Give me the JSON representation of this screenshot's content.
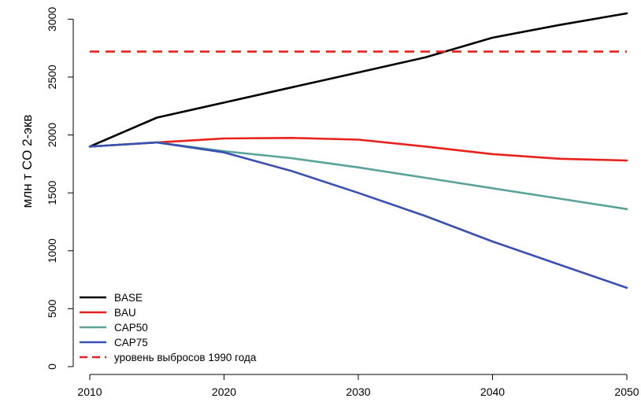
{
  "chart_data": {
    "type": "line",
    "title": "",
    "xlabel": "",
    "ylabel": "млн т CO 2-экв",
    "xlim": [
      2010,
      2050
    ],
    "ylim": [
      0,
      3050
    ],
    "x_ticks": [
      2010,
      2020,
      2030,
      2040,
      2050
    ],
    "y_ticks": [
      0,
      500,
      1000,
      1500,
      2000,
      2500,
      3000
    ],
    "grid": false,
    "legend_position": "bottom-left",
    "x": [
      2010,
      2015,
      2020,
      2025,
      2030,
      2035,
      2040,
      2045,
      2050
    ],
    "series": [
      {
        "name": "BASE",
        "color": "#000000",
        "dash": "solid",
        "values": [
          1900,
          2150,
          2280,
          2410,
          2540,
          2670,
          2840,
          2950,
          3050
        ]
      },
      {
        "name": "BAU",
        "color": "#e8211c",
        "dash": "solid",
        "values": [
          1900,
          1935,
          1970,
          1975,
          1960,
          1900,
          1835,
          1795,
          1780
        ]
      },
      {
        "name": "CAP50",
        "color": "#5aa39a",
        "dash": "solid",
        "values": [
          1900,
          1935,
          1860,
          1800,
          1720,
          1630,
          1540,
          1450,
          1360
        ]
      },
      {
        "name": "CAP75",
        "color": "#3a4fb0",
        "dash": "solid",
        "values": [
          1900,
          1935,
          1850,
          1690,
          1500,
          1300,
          1080,
          880,
          680
        ]
      },
      {
        "name": "уровень выбросов 1990 года",
        "color": "#e8211c",
        "dash": "dashed",
        "values": [
          2720,
          2720,
          2720,
          2720,
          2720,
          2720,
          2720,
          2720,
          2720
        ]
      }
    ]
  }
}
